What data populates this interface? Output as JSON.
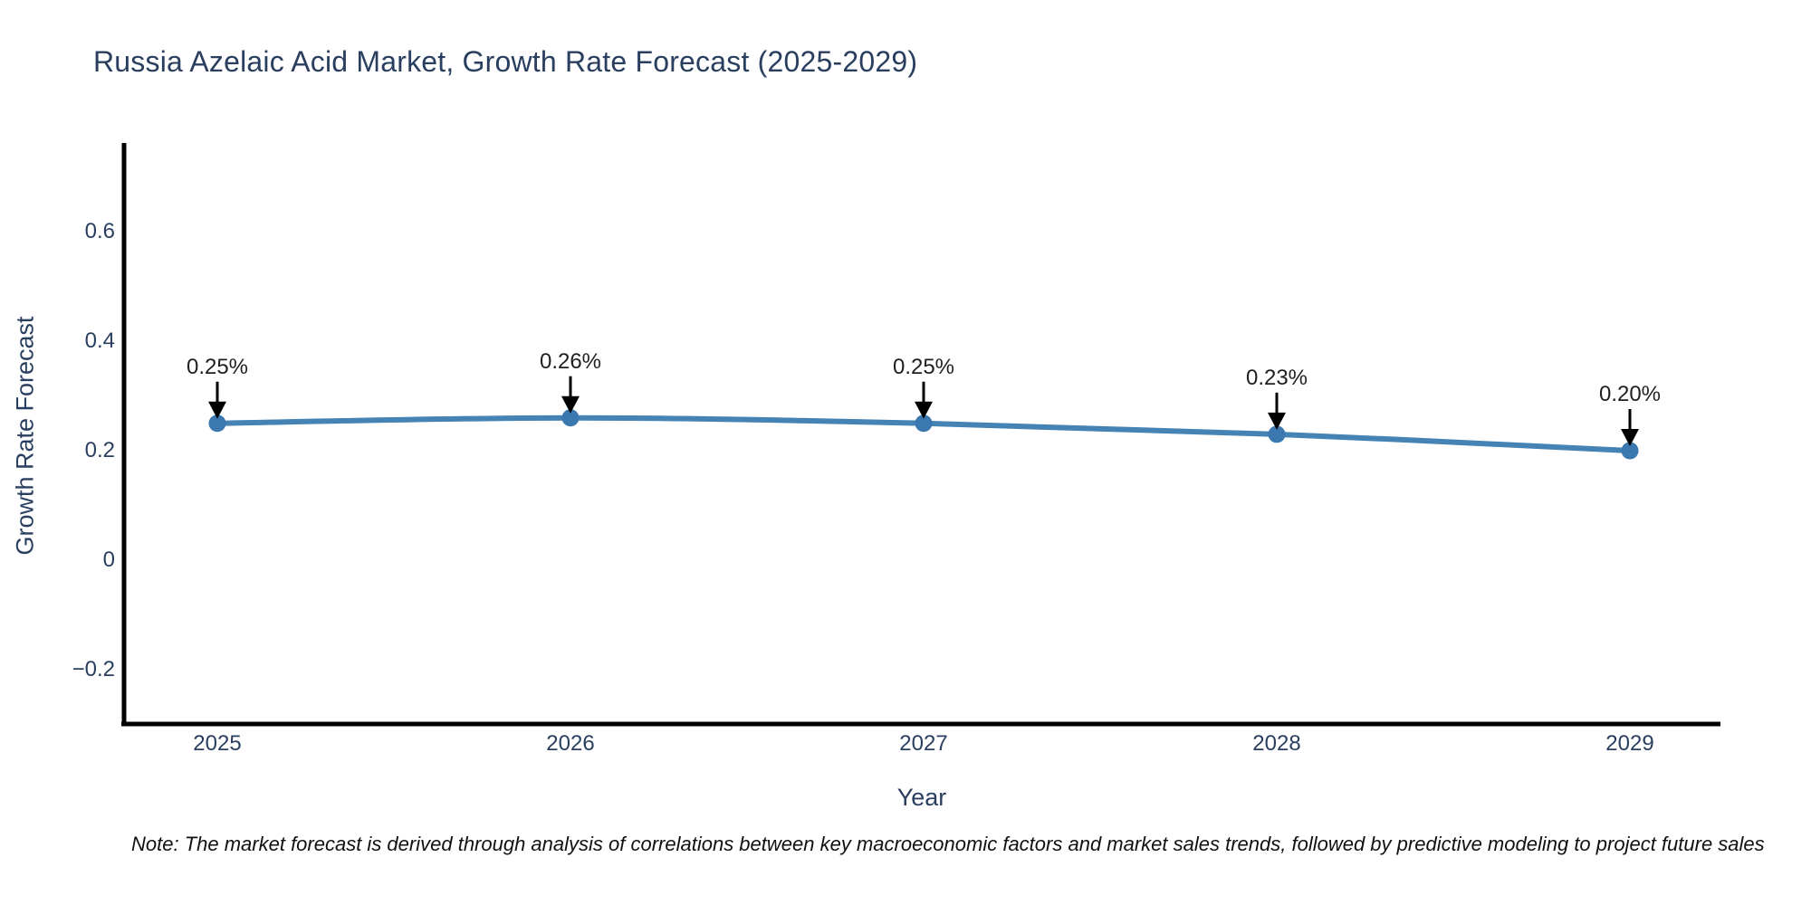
{
  "header": {
    "title": "Russia Azelaic Acid Market, Growth Rate Forecast (2025-2029)"
  },
  "chart_data": {
    "type": "line",
    "title": "Russia Azelaic Acid Market, Growth Rate Forecast (2025-2029)",
    "xlabel": "Year",
    "ylabel": "Growth Rate Forecast",
    "categories": [
      "2025",
      "2026",
      "2027",
      "2028",
      "2029"
    ],
    "values": [
      0.25,
      0.26,
      0.25,
      0.23,
      0.2
    ],
    "point_labels": [
      "0.25%",
      "0.26%",
      "0.25%",
      "0.23%",
      "0.20%"
    ],
    "series_name": "Growth Rate Forecast",
    "yticks": {
      "values": [
        0.6,
        0.4,
        0.2,
        0,
        -0.2
      ],
      "labels": [
        "0.6",
        "0.4",
        "0.2",
        "0",
        "−0.2"
      ]
    },
    "ylim": [
      -0.32,
      0.66
    ],
    "grid": false,
    "legend": "none",
    "annotation_arrows": true,
    "line_color": "#4583b5",
    "marker_color": "#3b78b0",
    "axis_color": "#000000",
    "label_color": "#2a3f5f"
  },
  "note": {
    "text": "Note: The market forecast is derived through analysis of correlations between key macroeconomic factors and market sales trends, followed by predictive modeling to project future sales"
  }
}
